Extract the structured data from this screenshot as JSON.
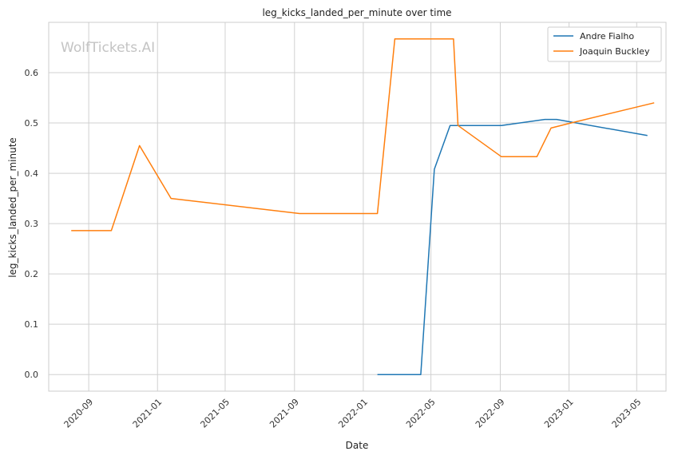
{
  "chart_data": {
    "type": "line",
    "title": "leg_kicks_landed_per_minute over time",
    "xlabel": "Date",
    "ylabel": "leg_kicks_landed_per_minute",
    "watermark": "WolfTickets.AI",
    "x_ticks": [
      "2020-09",
      "2021-01",
      "2021-05",
      "2021-09",
      "2022-01",
      "2022-05",
      "2022-09",
      "2023-01",
      "2023-05"
    ],
    "y_ticks": [
      "0.0",
      "0.1",
      "0.2",
      "0.3",
      "0.4",
      "0.5",
      "0.6"
    ],
    "xlim": [
      "2020-06-22",
      "2023-06-22"
    ],
    "ylim": [
      -0.033,
      0.7
    ],
    "grid": true,
    "legend_position": "top-right",
    "series": [
      {
        "name": "Andre Fialho",
        "color": "#1f77b4",
        "points": [
          {
            "x": "2022-01-26",
            "y": 0.0
          },
          {
            "x": "2022-04-13",
            "y": 0.0
          },
          {
            "x": "2022-05-07",
            "y": 0.408
          },
          {
            "x": "2022-06-04",
            "y": 0.495
          },
          {
            "x": "2022-09-03",
            "y": 0.495
          },
          {
            "x": "2022-11-19",
            "y": 0.507
          },
          {
            "x": "2022-12-10",
            "y": 0.507
          },
          {
            "x": "2023-05-20",
            "y": 0.475
          }
        ]
      },
      {
        "name": "Joaquin Buckley",
        "color": "#ff7f0e",
        "points": [
          {
            "x": "2020-08-01",
            "y": 0.286
          },
          {
            "x": "2020-10-11",
            "y": 0.286
          },
          {
            "x": "2020-11-30",
            "y": 0.455
          },
          {
            "x": "2021-01-25",
            "y": 0.35
          },
          {
            "x": "2021-09-10",
            "y": 0.32
          },
          {
            "x": "2022-01-26",
            "y": 0.32
          },
          {
            "x": "2022-02-26",
            "y": 0.667
          },
          {
            "x": "2022-06-10",
            "y": 0.667
          },
          {
            "x": "2022-06-18",
            "y": 0.495
          },
          {
            "x": "2022-09-03",
            "y": 0.433
          },
          {
            "x": "2022-11-05",
            "y": 0.433
          },
          {
            "x": "2022-11-30",
            "y": 0.49
          },
          {
            "x": "2023-01-04",
            "y": 0.5
          },
          {
            "x": "2023-06-01",
            "y": 0.54
          }
        ]
      }
    ]
  }
}
